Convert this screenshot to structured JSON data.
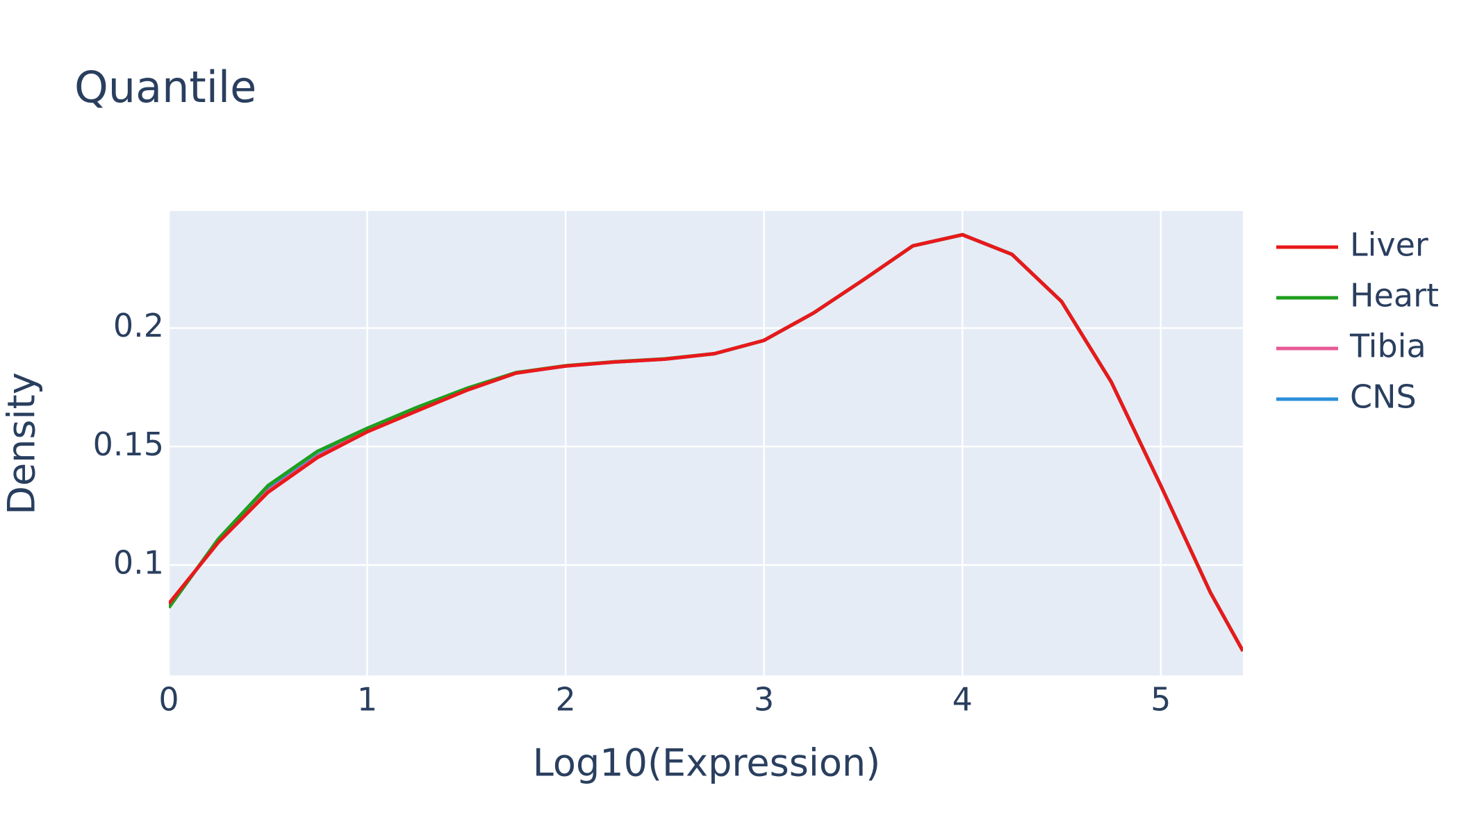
{
  "chart_data": {
    "type": "line",
    "title": "Quantile",
    "x_label": "Log10(Expression)",
    "y_label": "Density",
    "x": [
      0,
      0.25,
      0.5,
      0.75,
      1.0,
      1.25,
      1.5,
      1.75,
      2.0,
      2.25,
      2.5,
      2.75,
      3.0,
      3.25,
      3.5,
      3.75,
      4.0,
      4.25,
      4.5,
      4.75,
      5.0,
      5.25,
      5.414
    ],
    "series": [
      {
        "name": "Liver",
        "color": "#e8191b",
        "values": [
          0.0837,
          0.1096,
          0.1307,
          0.1454,
          0.1562,
          0.165,
          0.1737,
          0.181,
          0.184,
          0.1857,
          0.1869,
          0.1892,
          0.1948,
          0.2064,
          0.2203,
          0.2347,
          0.2394,
          0.2311,
          0.2112,
          0.1773,
          0.1335,
          0.0884,
          0.0637
        ]
      },
      {
        "name": "Heart",
        "color": "#1f9e1f",
        "values": [
          0.082,
          0.111,
          0.1335,
          0.148,
          0.1577,
          0.1665,
          0.1745,
          0.1812,
          0.1841,
          0.1858,
          0.187,
          0.1892,
          0.1948,
          0.2064,
          0.2203,
          0.2347,
          0.2394,
          0.2311,
          0.2112,
          0.1773,
          0.1335,
          0.0884,
          0.0637
        ]
      },
      {
        "name": "Tibia",
        "color": "#e75a96",
        "values": [
          0.0835,
          0.1098,
          0.1312,
          0.1458,
          0.1566,
          0.1654,
          0.174,
          0.1811,
          0.184,
          0.1857,
          0.1869,
          0.1892,
          0.1948,
          0.2064,
          0.2203,
          0.2347,
          0.2394,
          0.2311,
          0.2112,
          0.1773,
          0.1335,
          0.0884,
          0.0637
        ]
      },
      {
        "name": "CNS",
        "color": "#2b8fd8",
        "values": [
          0.0832,
          0.11,
          0.1318,
          0.1462,
          0.1569,
          0.1657,
          0.1742,
          0.1811,
          0.184,
          0.1857,
          0.1869,
          0.1892,
          0.1948,
          0.2064,
          0.2203,
          0.2347,
          0.2394,
          0.2311,
          0.2112,
          0.1773,
          0.1335,
          0.0884,
          0.0637
        ]
      }
    ],
    "xlim": [
      0,
      5.414
    ],
    "xticks": [
      0,
      1,
      2,
      3,
      4,
      5
    ],
    "ylim": [
      0.0534,
      0.2494
    ],
    "yticks": [
      0.1,
      0.15,
      0.2
    ],
    "grid": true
  }
}
